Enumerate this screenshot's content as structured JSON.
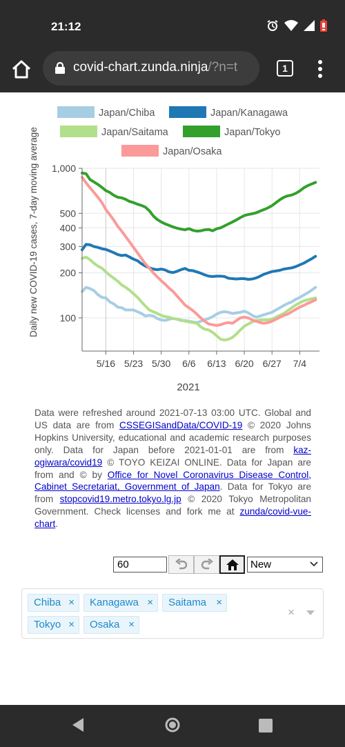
{
  "status_bar": {
    "time": "21:12",
    "icons": [
      "alarm-icon",
      "wifi-icon",
      "signal-icon",
      "battery-icon"
    ]
  },
  "browser": {
    "url_host": "covid-chart.zunda.ninja",
    "url_rest": "/?n=t",
    "tab_count": "1"
  },
  "chart_data": {
    "type": "line",
    "title": "",
    "xlabel": "2021",
    "ylabel": "Daily new COVID-19 cases, 7-day moving average",
    "yscale": "log",
    "ylim": [
      60,
      1000
    ],
    "yticks": [
      {
        "value": 1000,
        "label": "1,000"
      },
      {
        "value": 500,
        "label": "500"
      },
      {
        "value": 400,
        "label": "400"
      },
      {
        "value": 300,
        "label": "300"
      },
      {
        "value": 200,
        "label": "200"
      },
      {
        "value": 100,
        "label": "100"
      }
    ],
    "xlim": [
      0,
      60
    ],
    "xticks": [
      {
        "value": 6,
        "label": "5/16"
      },
      {
        "value": 13,
        "label": "5/23"
      },
      {
        "value": 20,
        "label": "5/30"
      },
      {
        "value": 27,
        "label": "6/6"
      },
      {
        "value": 34,
        "label": "6/13"
      },
      {
        "value": 41,
        "label": "6/20"
      },
      {
        "value": 48,
        "label": "6/27"
      },
      {
        "value": 55,
        "label": "7/4"
      }
    ],
    "grid": true,
    "legend_position": "top",
    "series": [
      {
        "name": "Japan/Chiba",
        "color": "#a6cee3",
        "x": [
          0,
          1,
          2,
          3,
          4,
          5,
          6,
          7,
          8,
          9,
          10,
          11,
          12,
          13,
          14,
          15,
          16,
          17,
          18,
          19,
          20,
          21,
          22,
          23,
          24,
          25,
          26,
          27,
          28,
          29,
          30,
          31,
          32,
          33,
          34,
          35,
          36,
          37,
          38,
          39,
          40,
          41,
          42,
          43,
          44,
          45,
          46,
          47,
          48,
          49,
          50,
          51,
          52,
          53,
          54,
          55,
          56,
          57,
          58,
          59
        ],
        "y": [
          150,
          160,
          157,
          152,
          143,
          137,
          136,
          128,
          124,
          118,
          117,
          113,
          113,
          113,
          110,
          107,
          103,
          104,
          103,
          99,
          97,
          96,
          98,
          99,
          98,
          96,
          96,
          95,
          94,
          93,
          95,
          97,
          99,
          102,
          106,
          109,
          110,
          109,
          107,
          108,
          109,
          111,
          108,
          104,
          101,
          103,
          105,
          107,
          109,
          113,
          117,
          121,
          125,
          128,
          133,
          137,
          142,
          147,
          153,
          160
        ]
      },
      {
        "name": "Japan/Kanagawa",
        "color": "#1f78b4",
        "x": [
          0,
          1,
          2,
          3,
          4,
          5,
          6,
          7,
          8,
          9,
          10,
          11,
          12,
          13,
          14,
          15,
          16,
          17,
          18,
          19,
          20,
          21,
          22,
          23,
          24,
          25,
          26,
          27,
          28,
          29,
          30,
          31,
          32,
          33,
          34,
          35,
          36,
          37,
          38,
          39,
          40,
          41,
          42,
          43,
          44,
          45,
          46,
          47,
          48,
          49,
          50,
          51,
          52,
          53,
          54,
          55,
          56,
          57,
          58,
          59
        ],
        "y": [
          285,
          310,
          308,
          300,
          296,
          290,
          287,
          280,
          273,
          265,
          261,
          263,
          255,
          247,
          241,
          230,
          222,
          216,
          212,
          210,
          212,
          209,
          203,
          201,
          205,
          210,
          214,
          208,
          207,
          203,
          199,
          194,
          190,
          189,
          190,
          190,
          189,
          184,
          183,
          182,
          183,
          183,
          181,
          182,
          185,
          190,
          196,
          200,
          204,
          206,
          208,
          212,
          214,
          216,
          220,
          226,
          232,
          240,
          248,
          258
        ]
      },
      {
        "name": "Japan/Saitama",
        "color": "#b2df8a",
        "x": [
          0,
          1,
          2,
          3,
          4,
          5,
          6,
          7,
          8,
          9,
          10,
          11,
          12,
          13,
          14,
          15,
          16,
          17,
          18,
          19,
          20,
          21,
          22,
          23,
          24,
          25,
          26,
          27,
          28,
          29,
          30,
          31,
          32,
          33,
          34,
          35,
          36,
          37,
          38,
          39,
          40,
          41,
          42,
          43,
          44,
          45,
          46,
          47,
          48,
          49,
          50,
          51,
          52,
          53,
          54,
          55,
          56,
          57,
          58,
          59
        ],
        "y": [
          250,
          255,
          245,
          232,
          222,
          215,
          203,
          193,
          184,
          176,
          166,
          160,
          153,
          145,
          137,
          128,
          120,
          113,
          110,
          107,
          104,
          102,
          101,
          99,
          98,
          97,
          95,
          94,
          93,
          92,
          87,
          84,
          83,
          80,
          76,
          72,
          71,
          72,
          74,
          78,
          83,
          88,
          91,
          94,
          96,
          97,
          97,
          97,
          98,
          101,
          104,
          107,
          112,
          117,
          122,
          126,
          130,
          132,
          134,
          136
        ]
      },
      {
        "name": "Japan/Tokyo",
        "color": "#33a02c",
        "x": [
          0,
          1,
          2,
          3,
          4,
          5,
          6,
          7,
          8,
          9,
          10,
          11,
          12,
          13,
          14,
          15,
          16,
          17,
          18,
          19,
          20,
          21,
          22,
          23,
          24,
          25,
          26,
          27,
          28,
          29,
          30,
          31,
          32,
          33,
          34,
          35,
          36,
          37,
          38,
          39,
          40,
          41,
          42,
          43,
          44,
          45,
          46,
          47,
          48,
          49,
          50,
          51,
          52,
          53,
          54,
          55,
          56,
          57,
          58,
          59
        ],
        "y": [
          930,
          920,
          840,
          810,
          780,
          745,
          710,
          690,
          660,
          640,
          635,
          620,
          600,
          590,
          575,
          565,
          550,
          520,
          480,
          455,
          438,
          425,
          415,
          405,
          398,
          392,
          388,
          395,
          385,
          380,
          382,
          388,
          390,
          382,
          394,
          400,
          412,
          425,
          438,
          452,
          468,
          483,
          491,
          497,
          504,
          518,
          530,
          544,
          563,
          589,
          617,
          640,
          655,
          663,
          680,
          705,
          740,
          765,
          785,
          805
        ]
      },
      {
        "name": "Japan/Osaka",
        "color": "#fb9a99",
        "x": [
          0,
          1,
          2,
          3,
          4,
          5,
          6,
          7,
          8,
          9,
          10,
          11,
          12,
          13,
          14,
          15,
          16,
          17,
          18,
          19,
          20,
          21,
          22,
          23,
          24,
          25,
          26,
          27,
          28,
          29,
          30,
          31,
          32,
          33,
          34,
          35,
          36,
          37,
          38,
          39,
          40,
          41,
          42,
          43,
          44,
          45,
          46,
          47,
          48,
          49,
          50,
          51,
          52,
          53,
          54,
          55,
          56,
          57,
          58,
          59
        ],
        "y": [
          870,
          800,
          740,
          690,
          640,
          590,
          530,
          490,
          450,
          410,
          380,
          350,
          322,
          296,
          272,
          250,
          230,
          215,
          200,
          188,
          177,
          168,
          158,
          150,
          140,
          131,
          122,
          117,
          112,
          106,
          100,
          95,
          91,
          90,
          89,
          90,
          92,
          93,
          92,
          96,
          100,
          101,
          100,
          97,
          95,
          93,
          92,
          93,
          95,
          98,
          101,
          104,
          106,
          110,
          114,
          118,
          121,
          125,
          128,
          132
        ]
      }
    ]
  },
  "notes": {
    "p1": "Data were refreshed around 2021-07-13 03:00 UTC. Global and US data are from ",
    "l1": "CSSEGISandData/COVID-19",
    "p2": " © 2020 Johns Hopkins University, educational and academic research purposes only. Data for Japan before 2021-01-01 are from ",
    "l2": "kaz-ogiwara/covid19",
    "p3": " © TOYO KEIZAI ONLINE. Data for Japan are from and © by ",
    "l3": "Office for Novel Coronavirus Disease Control, Cabinet Secretariat, Government of Japan",
    "p4": ". Data for Tokyo are from ",
    "l4": "stopcovid19.metro.tokyo.lg.jp",
    "p5": " © 2020 Tokyo Metropolitan Government. Check licenses and fork me at ",
    "l5": "zunda/covid-vue-chart",
    "p6": "."
  },
  "controls": {
    "days_value": "60",
    "mode_selected": "New"
  },
  "regions": {
    "tags": [
      "Chiba",
      "Kanagawa",
      "Saitama",
      "Tokyo",
      "Osaka"
    ],
    "remove_symbol": "×",
    "clear_symbol": "×"
  }
}
